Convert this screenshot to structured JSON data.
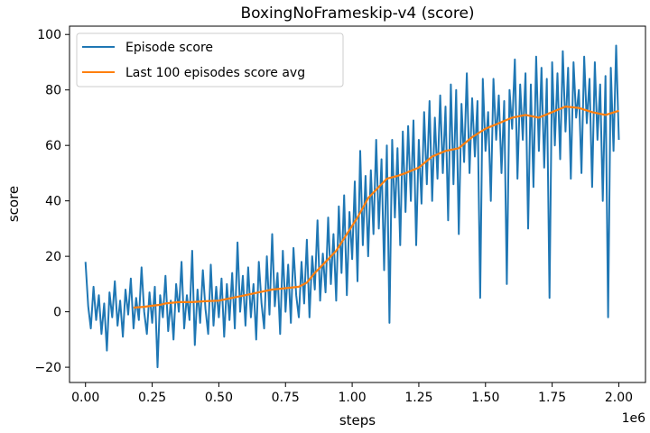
{
  "chart_data": {
    "type": "line",
    "title": "BoxingNoFrameskip-v4 (score)",
    "xlabel": "steps",
    "ylabel": "score",
    "x_offset_label": "1e6",
    "xlim": [
      -0.06,
      2.1
    ],
    "ylim": [
      -25.5,
      103
    ],
    "x_ticks": [
      0,
      0.25,
      0.5,
      0.75,
      1.0,
      1.25,
      1.5,
      1.75,
      2.0
    ],
    "x_tick_labels": [
      "0.00",
      "0.25",
      "0.50",
      "0.75",
      "1.00",
      "1.25",
      "1.50",
      "1.75",
      "2.00"
    ],
    "y_ticks": [
      -20,
      0,
      20,
      40,
      60,
      80,
      100
    ],
    "y_tick_labels": [
      "−20",
      "0",
      "20",
      "40",
      "60",
      "80",
      "100"
    ],
    "grid": false,
    "legend_position": "top-left",
    "series": [
      {
        "name": "Episode score",
        "color": "#1f77b4",
        "points": [
          [
            0.0,
            18
          ],
          [
            0.01,
            2
          ],
          [
            0.02,
            -6
          ],
          [
            0.03,
            9
          ],
          [
            0.04,
            -3
          ],
          [
            0.05,
            6
          ],
          [
            0.06,
            -8
          ],
          [
            0.07,
            3
          ],
          [
            0.08,
            -14
          ],
          [
            0.09,
            7
          ],
          [
            0.1,
            -2
          ],
          [
            0.11,
            11
          ],
          [
            0.12,
            -5
          ],
          [
            0.13,
            4
          ],
          [
            0.14,
            -9
          ],
          [
            0.15,
            8
          ],
          [
            0.16,
            -1
          ],
          [
            0.17,
            12
          ],
          [
            0.18,
            -6
          ],
          [
            0.19,
            5
          ],
          [
            0.2,
            -3
          ],
          [
            0.21,
            16
          ],
          [
            0.22,
            0
          ],
          [
            0.23,
            -8
          ],
          [
            0.24,
            7
          ],
          [
            0.25,
            -4
          ],
          [
            0.26,
            9
          ],
          [
            0.27,
            -20
          ],
          [
            0.28,
            6
          ],
          [
            0.29,
            -2
          ],
          [
            0.3,
            13
          ],
          [
            0.31,
            -7
          ],
          [
            0.32,
            4
          ],
          [
            0.33,
            -10
          ],
          [
            0.34,
            10
          ],
          [
            0.35,
            0
          ],
          [
            0.36,
            18
          ],
          [
            0.37,
            -6
          ],
          [
            0.38,
            6
          ],
          [
            0.39,
            -3
          ],
          [
            0.4,
            22
          ],
          [
            0.41,
            -12
          ],
          [
            0.42,
            8
          ],
          [
            0.43,
            -4
          ],
          [
            0.44,
            15
          ],
          [
            0.45,
            1
          ],
          [
            0.46,
            -8
          ],
          [
            0.47,
            17
          ],
          [
            0.48,
            -5
          ],
          [
            0.49,
            9
          ],
          [
            0.5,
            -2
          ],
          [
            0.51,
            12
          ],
          [
            0.52,
            -9
          ],
          [
            0.53,
            10
          ],
          [
            0.54,
            -3
          ],
          [
            0.55,
            14
          ],
          [
            0.56,
            -6
          ],
          [
            0.57,
            25
          ],
          [
            0.58,
            0
          ],
          [
            0.59,
            13
          ],
          [
            0.6,
            -5
          ],
          [
            0.61,
            16
          ],
          [
            0.62,
            -2
          ],
          [
            0.63,
            10
          ],
          [
            0.64,
            -10
          ],
          [
            0.65,
            18
          ],
          [
            0.66,
            3
          ],
          [
            0.67,
            -6
          ],
          [
            0.68,
            20
          ],
          [
            0.69,
            -1
          ],
          [
            0.7,
            28
          ],
          [
            0.71,
            2
          ],
          [
            0.72,
            14
          ],
          [
            0.73,
            -8
          ],
          [
            0.74,
            22
          ],
          [
            0.75,
            0
          ],
          [
            0.76,
            17
          ],
          [
            0.77,
            -4
          ],
          [
            0.78,
            23
          ],
          [
            0.79,
            6
          ],
          [
            0.8,
            -2
          ],
          [
            0.81,
            18
          ],
          [
            0.82,
            3
          ],
          [
            0.83,
            26
          ],
          [
            0.84,
            -2
          ],
          [
            0.85,
            20
          ],
          [
            0.86,
            8
          ],
          [
            0.87,
            33
          ],
          [
            0.88,
            4
          ],
          [
            0.89,
            21
          ],
          [
            0.9,
            7
          ],
          [
            0.91,
            34
          ],
          [
            0.92,
            10
          ],
          [
            0.93,
            28
          ],
          [
            0.94,
            4
          ],
          [
            0.95,
            38
          ],
          [
            0.96,
            14
          ],
          [
            0.97,
            42
          ],
          [
            0.98,
            6
          ],
          [
            0.99,
            36
          ],
          [
            1.0,
            19
          ],
          [
            1.01,
            47
          ],
          [
            1.02,
            11
          ],
          [
            1.03,
            58
          ],
          [
            1.04,
            24
          ],
          [
            1.05,
            49
          ],
          [
            1.06,
            20
          ],
          [
            1.07,
            51
          ],
          [
            1.08,
            28
          ],
          [
            1.09,
            62
          ],
          [
            1.1,
            30
          ],
          [
            1.11,
            55
          ],
          [
            1.12,
            15
          ],
          [
            1.13,
            60
          ],
          [
            1.14,
            -4
          ],
          [
            1.15,
            62
          ],
          [
            1.16,
            34
          ],
          [
            1.17,
            59
          ],
          [
            1.18,
            24
          ],
          [
            1.19,
            65
          ],
          [
            1.2,
            36
          ],
          [
            1.21,
            67
          ],
          [
            1.22,
            40
          ],
          [
            1.23,
            69
          ],
          [
            1.24,
            24
          ],
          [
            1.25,
            62
          ],
          [
            1.26,
            39
          ],
          [
            1.27,
            72
          ],
          [
            1.28,
            46
          ],
          [
            1.29,
            76
          ],
          [
            1.3,
            40
          ],
          [
            1.31,
            70
          ],
          [
            1.32,
            48
          ],
          [
            1.33,
            78
          ],
          [
            1.34,
            50
          ],
          [
            1.35,
            74
          ],
          [
            1.36,
            33
          ],
          [
            1.37,
            82
          ],
          [
            1.38,
            46
          ],
          [
            1.39,
            80
          ],
          [
            1.4,
            28
          ],
          [
            1.41,
            75
          ],
          [
            1.42,
            54
          ],
          [
            1.43,
            86
          ],
          [
            1.44,
            50
          ],
          [
            1.45,
            77
          ],
          [
            1.46,
            56
          ],
          [
            1.47,
            76
          ],
          [
            1.48,
            5
          ],
          [
            1.49,
            84
          ],
          [
            1.5,
            58
          ],
          [
            1.51,
            72
          ],
          [
            1.52,
            40
          ],
          [
            1.53,
            84
          ],
          [
            1.54,
            62
          ],
          [
            1.55,
            78
          ],
          [
            1.56,
            50
          ],
          [
            1.57,
            76
          ],
          [
            1.58,
            10
          ],
          [
            1.59,
            80
          ],
          [
            1.6,
            66
          ],
          [
            1.61,
            91
          ],
          [
            1.62,
            48
          ],
          [
            1.63,
            82
          ],
          [
            1.64,
            62
          ],
          [
            1.65,
            86
          ],
          [
            1.66,
            30
          ],
          [
            1.67,
            82
          ],
          [
            1.68,
            45
          ],
          [
            1.69,
            92
          ],
          [
            1.7,
            58
          ],
          [
            1.71,
            88
          ],
          [
            1.72,
            52
          ],
          [
            1.73,
            84
          ],
          [
            1.74,
            5
          ],
          [
            1.75,
            90
          ],
          [
            1.76,
            60
          ],
          [
            1.77,
            86
          ],
          [
            1.78,
            55
          ],
          [
            1.79,
            94
          ],
          [
            1.8,
            65
          ],
          [
            1.81,
            88
          ],
          [
            1.82,
            48
          ],
          [
            1.83,
            90
          ],
          [
            1.84,
            70
          ],
          [
            1.85,
            80
          ],
          [
            1.86,
            50
          ],
          [
            1.87,
            92
          ],
          [
            1.88,
            68
          ],
          [
            1.89,
            84
          ],
          [
            1.9,
            45
          ],
          [
            1.91,
            90
          ],
          [
            1.92,
            62
          ],
          [
            1.93,
            82
          ],
          [
            1.94,
            40
          ],
          [
            1.95,
            85
          ],
          [
            1.96,
            -2
          ],
          [
            1.97,
            88
          ],
          [
            1.98,
            58
          ],
          [
            1.99,
            96
          ],
          [
            2.0,
            62
          ]
        ]
      },
      {
        "name": "Last 100 episodes score avg",
        "color": "#ff7f0e",
        "points": [
          [
            0.18,
            1.5
          ],
          [
            0.22,
            1.8
          ],
          [
            0.25,
            2.2
          ],
          [
            0.28,
            2.5
          ],
          [
            0.3,
            3.0
          ],
          [
            0.35,
            3.5
          ],
          [
            0.4,
            3.5
          ],
          [
            0.45,
            3.8
          ],
          [
            0.5,
            4.0
          ],
          [
            0.55,
            5.0
          ],
          [
            0.6,
            6.0
          ],
          [
            0.65,
            7.0
          ],
          [
            0.7,
            8.0
          ],
          [
            0.75,
            8.5
          ],
          [
            0.8,
            9.0
          ],
          [
            0.83,
            10.5
          ],
          [
            0.86,
            14.0
          ],
          [
            0.9,
            18.0
          ],
          [
            0.94,
            22.0
          ],
          [
            0.98,
            28.0
          ],
          [
            1.02,
            34.0
          ],
          [
            1.06,
            41.0
          ],
          [
            1.1,
            45.0
          ],
          [
            1.13,
            48.0
          ],
          [
            1.17,
            49.0
          ],
          [
            1.2,
            50.0
          ],
          [
            1.25,
            52.0
          ],
          [
            1.3,
            56.0
          ],
          [
            1.35,
            58.0
          ],
          [
            1.4,
            59.0
          ],
          [
            1.45,
            63.0
          ],
          [
            1.5,
            66.0
          ],
          [
            1.55,
            68.0
          ],
          [
            1.6,
            70.0
          ],
          [
            1.65,
            71.0
          ],
          [
            1.7,
            70.0
          ],
          [
            1.75,
            72.0
          ],
          [
            1.8,
            74.0
          ],
          [
            1.85,
            73.5
          ],
          [
            1.9,
            72.0
          ],
          [
            1.95,
            71.0
          ],
          [
            2.0,
            72.5
          ]
        ]
      }
    ]
  }
}
